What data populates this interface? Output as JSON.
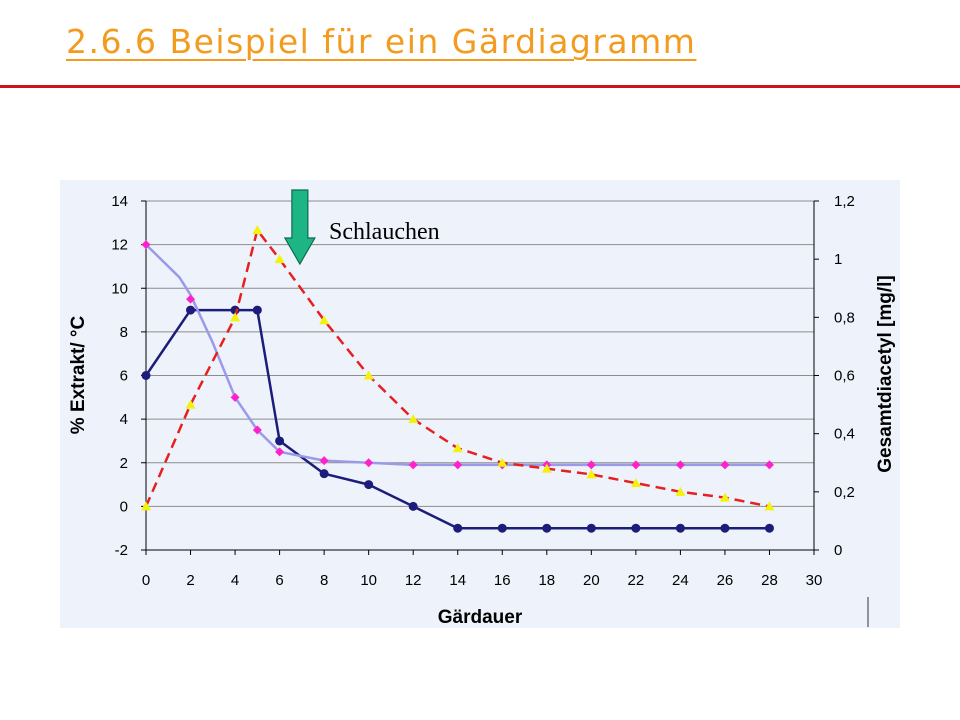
{
  "slide": {
    "title": "2.6.6 Beispiel für ein Gärdiagramm"
  },
  "chart_data": {
    "type": "line",
    "title": "",
    "xlabel": "Gärdauer",
    "ylabel": "% Extrakt/ °C",
    "y2label": "Gesamtdiacetyl [mg/l]",
    "xlim": [
      0,
      30
    ],
    "ylim": [
      -2,
      14
    ],
    "y2lim": [
      0,
      1.2
    ],
    "x_ticks": [
      0,
      2,
      4,
      6,
      8,
      10,
      12,
      14,
      16,
      18,
      20,
      22,
      24,
      26,
      28,
      30
    ],
    "y_ticks": [
      -2,
      0,
      2,
      4,
      6,
      8,
      10,
      12,
      14
    ],
    "y2_ticks": [
      "0",
      "0,2",
      "0,4",
      "0,6",
      "0,8",
      "1",
      "1,2"
    ],
    "grid": "horizontal",
    "legend": "none",
    "annotation": {
      "text": "Schlauchen",
      "x": 7,
      "arrow_color": "#1db584"
    },
    "series": [
      {
        "axis": "left",
        "color": "#1c1c7a",
        "marker": "circle",
        "style": "solid",
        "points": [
          [
            0,
            6
          ],
          [
            2,
            9
          ],
          [
            4,
            9
          ],
          [
            5,
            9
          ],
          [
            6,
            3
          ],
          [
            8,
            1.5
          ],
          [
            10,
            1
          ],
          [
            12,
            0
          ],
          [
            14,
            -1
          ],
          [
            16,
            -1
          ],
          [
            18,
            -1
          ],
          [
            20,
            -1
          ],
          [
            22,
            -1
          ],
          [
            24,
            -1
          ],
          [
            26,
            -1
          ],
          [
            28,
            -1
          ]
        ]
      },
      {
        "axis": "left",
        "color": "#9a9ae8",
        "marker": "none",
        "style": "solid",
        "points": [
          [
            0,
            12
          ],
          [
            1.5,
            10.5
          ],
          [
            2,
            9.7
          ],
          [
            3,
            7.5
          ],
          [
            4,
            5
          ],
          [
            5,
            3.5
          ],
          [
            6,
            2.5
          ],
          [
            8,
            2.1
          ],
          [
            10,
            2
          ],
          [
            12,
            1.9
          ],
          [
            14,
            1.9
          ],
          [
            16,
            1.9
          ],
          [
            18,
            1.9
          ],
          [
            20,
            1.9
          ],
          [
            22,
            1.9
          ],
          [
            24,
            1.9
          ],
          [
            26,
            1.9
          ],
          [
            28,
            1.9
          ]
        ]
      },
      {
        "axis": "left",
        "color": "#ff22cc",
        "marker": "diamond",
        "style": "none",
        "points": [
          [
            0,
            12
          ],
          [
            2,
            9.5
          ],
          [
            4,
            5
          ],
          [
            5,
            3.5
          ],
          [
            6,
            2.5
          ],
          [
            8,
            2.1
          ],
          [
            10,
            2
          ],
          [
            12,
            1.9
          ],
          [
            14,
            1.9
          ],
          [
            16,
            1.9
          ],
          [
            18,
            1.9
          ],
          [
            20,
            1.9
          ],
          [
            22,
            1.9
          ],
          [
            24,
            1.9
          ],
          [
            26,
            1.9
          ],
          [
            28,
            1.9
          ]
        ]
      },
      {
        "axis": "right",
        "color": "#e62020",
        "marker_color": "#f2f20a",
        "marker": "triangle",
        "style": "dashed",
        "points": [
          [
            0,
            0.15
          ],
          [
            2,
            0.5
          ],
          [
            4,
            0.8
          ],
          [
            5,
            1.1
          ],
          [
            6,
            1
          ],
          [
            8,
            0.79
          ],
          [
            10,
            0.6
          ],
          [
            12,
            0.45
          ],
          [
            14,
            0.35
          ],
          [
            16,
            0.3
          ],
          [
            18,
            0.28
          ],
          [
            20,
            0.26
          ],
          [
            22,
            0.23
          ],
          [
            24,
            0.2
          ],
          [
            26,
            0.18
          ],
          [
            28,
            0.15
          ]
        ]
      }
    ]
  }
}
